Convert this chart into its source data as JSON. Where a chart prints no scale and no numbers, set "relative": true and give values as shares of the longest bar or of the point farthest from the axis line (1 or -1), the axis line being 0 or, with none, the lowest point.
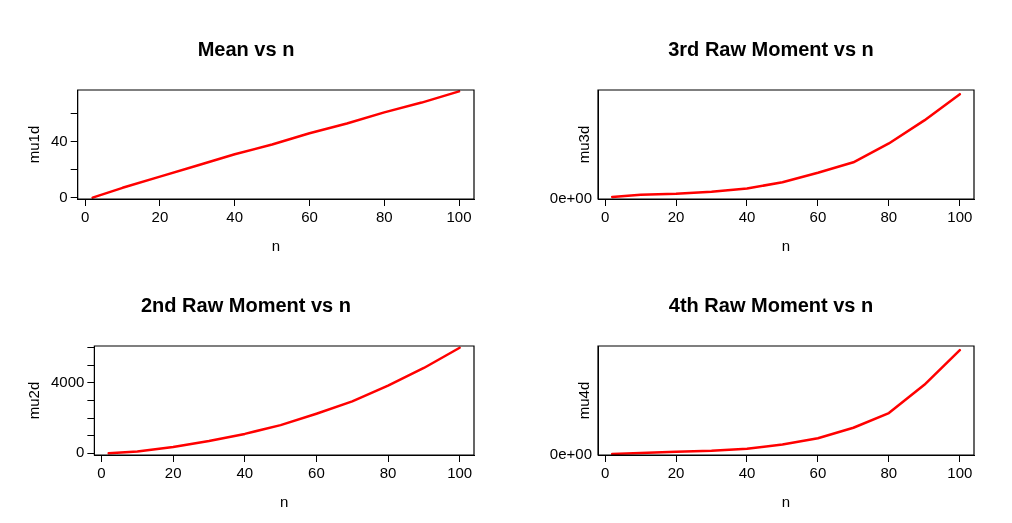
{
  "chart_data": [
    {
      "type": "line",
      "title": "Mean vs n",
      "xlabel": "n",
      "ylabel": "mu1d",
      "x": [
        2,
        10,
        20,
        30,
        40,
        50,
        60,
        70,
        80,
        90,
        100
      ],
      "values": [
        0,
        7,
        15,
        23,
        31,
        38,
        46,
        53,
        61,
        68,
        76
      ],
      "color": "#ff0000",
      "xlim": [
        -2,
        104
      ],
      "xticks": [
        0,
        20,
        40,
        60,
        80,
        100
      ],
      "ylim": [
        -1,
        77
      ],
      "yticks": [
        0,
        {
          "value": 20,
          "label": null
        },
        40,
        {
          "value": 60,
          "label": null
        }
      ],
      "legend": false,
      "marker": "none"
    },
    {
      "type": "line",
      "title": "3rd Raw Moment vs n",
      "xlabel": "n",
      "ylabel": "mu3d",
      "relative": true,
      "x": [
        2,
        10,
        20,
        30,
        40,
        50,
        60,
        70,
        80,
        90,
        100
      ],
      "values": [
        0.02,
        0.04,
        0.05,
        0.07,
        0.1,
        0.16,
        0.25,
        0.35,
        0.53,
        0.75,
        1
      ],
      "color": "#ff0000",
      "xlim": [
        -2,
        104
      ],
      "xticks": [
        0,
        20,
        40,
        60,
        80,
        100
      ],
      "annotations": [
        "0e+00"
      ],
      "legend": false,
      "marker": "none"
    },
    {
      "type": "line",
      "title": "2nd Raw Moment vs n",
      "xlabel": "n",
      "ylabel": "mu2d",
      "x": [
        2,
        10,
        20,
        30,
        40,
        50,
        60,
        70,
        80,
        90,
        100
      ],
      "values": [
        0,
        100,
        350,
        700,
        1100,
        1600,
        2250,
        2950,
        3850,
        4850,
        6000
      ],
      "color": "#ff0000",
      "xlim": [
        -2,
        104
      ],
      "xticks": [
        0,
        20,
        40,
        60,
        80,
        100
      ],
      "ylim": [
        -100,
        6100
      ],
      "yticks": [
        0,
        {
          "value": 1000,
          "label": null
        },
        {
          "value": 2000,
          "label": null
        },
        {
          "value": 3000,
          "label": null
        },
        4000,
        {
          "value": 5000,
          "label": null
        },
        {
          "value": 6000,
          "label": null
        }
      ],
      "legend": false,
      "marker": "none"
    },
    {
      "type": "line",
      "title": "4th Raw Moment vs n",
      "xlabel": "n",
      "ylabel": "mu4d",
      "relative": true,
      "x": [
        2,
        10,
        20,
        30,
        40,
        50,
        60,
        70,
        80,
        90,
        100
      ],
      "values": [
        0.01,
        0.02,
        0.03,
        0.04,
        0.06,
        0.1,
        0.16,
        0.26,
        0.4,
        0.67,
        1
      ],
      "color": "#ff0000",
      "xlim": [
        -2,
        104
      ],
      "xticks": [
        0,
        20,
        40,
        60,
        80,
        100
      ],
      "annotations": [
        "0e+00"
      ],
      "legend": false,
      "marker": "none"
    }
  ]
}
